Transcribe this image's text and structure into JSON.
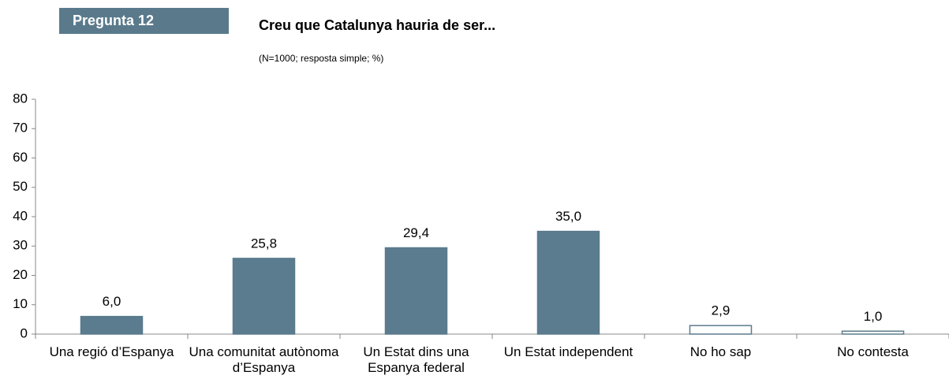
{
  "chart_data": {
    "type": "bar",
    "question_label": "Pregunta 12",
    "title": "Creu que Catalunya hauria de ser...",
    "subtitle": "(N=1000; resposta simple; %)",
    "categories": [
      "Una regió d’Espanya",
      "Una comunitat autònoma d’Espanya",
      "Un Estat dins una Espanya federal",
      "Un Estat independent",
      "No ho sap",
      "No contesta"
    ],
    "values": [
      6.0,
      25.8,
      29.4,
      35.0,
      2.9,
      1.0
    ],
    "value_labels": [
      "6,0",
      "25,8",
      "29,4",
      "35,0",
      "2,9",
      "1,0"
    ],
    "colors": [
      "#5b7b8e",
      "#5b7b8e",
      "#5b7b8e",
      "#5b7b8e",
      "#ffffff",
      "#ffffff"
    ],
    "edge_color": "#5b7b8e",
    "ylim": [
      0,
      80
    ],
    "yticks": [
      0,
      10,
      20,
      30,
      40,
      50,
      60,
      70,
      80
    ],
    "grid": false
  }
}
